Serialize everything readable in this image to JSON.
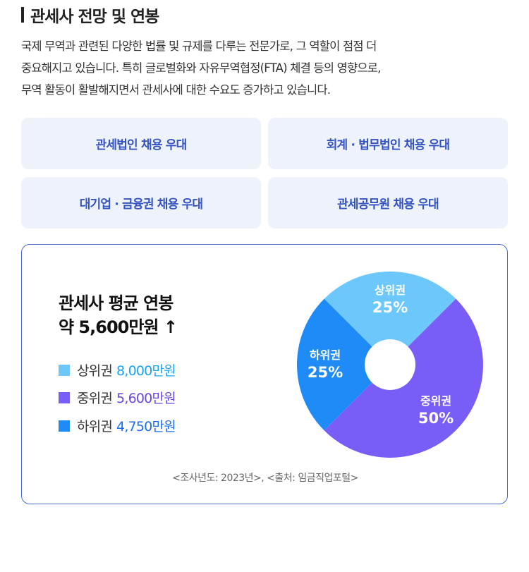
{
  "title": "관세사 전망 및 연봉",
  "description": [
    "국제 무역과 관련된 다양한 법률 및 규제를 다루는 전문가로, 그 역할이 점점 더",
    "중요해지고 있습니다. 특히 글로벌화와 자유무역협정(FTA) 체결 등의 영향으로,",
    "무역 활동이 활발해지면서 관세사에 대한 수요도 증가하고 있습니다."
  ],
  "benefits": [
    "관세법인 채용 우대",
    "회계 · 법무법인 채용 우대",
    "대기업 · 금융권 채용 우대",
    "관세공무원 채용 우대"
  ],
  "salary": {
    "heading": "관세사 평균 연봉",
    "average": "약 5,600만원 ↑",
    "legend": [
      {
        "label": "상위권",
        "value": "8,000만원",
        "color": "#6cc8fb",
        "text_color": "#1aa3f0"
      },
      {
        "label": "중위권",
        "value": "5,600만원",
        "color": "#7a5cf7",
        "text_color": "#6a45e6"
      },
      {
        "label": "하위권",
        "value": "4,750만원",
        "color": "#1e8bf7",
        "text_color": "#1c6ff0"
      }
    ],
    "source": "<조사년도: 2023년>, <출처: 임금직업포털>"
  },
  "chart_data": {
    "type": "pie",
    "categories": [
      "상위권",
      "중위권",
      "하위권"
    ],
    "values": [
      25,
      50,
      25
    ],
    "labels": [
      "25%",
      "50%",
      "25%"
    ],
    "colors": [
      "#6cc8fb",
      "#7a5cf7",
      "#1e8bf7"
    ],
    "donut": true
  }
}
